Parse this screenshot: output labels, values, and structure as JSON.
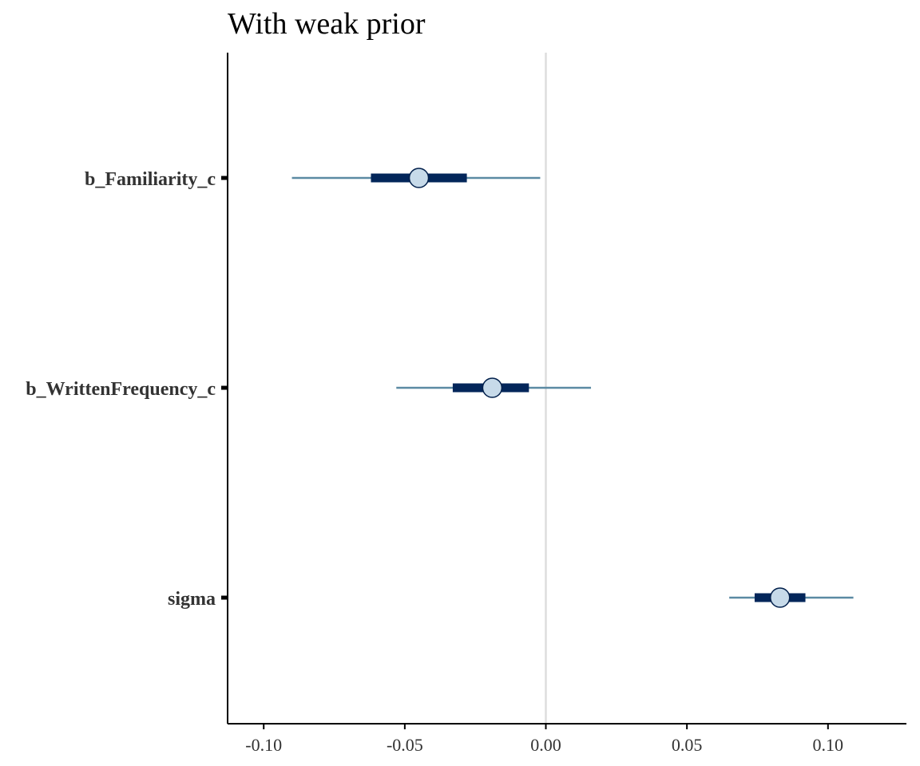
{
  "chart_data": {
    "type": "interval",
    "title": "With weak prior",
    "xlabel": "",
    "ylabel": "",
    "xlim": [
      -0.1128,
      0.1278
    ],
    "xticks": [
      -0.1,
      -0.05,
      0.0,
      0.05,
      0.1
    ],
    "xtick_labels": [
      "-0.10",
      "-0.05",
      "0.00",
      "0.05",
      "0.10"
    ],
    "reference_line_x": 0.0,
    "grid": false,
    "legend": "none",
    "parameters": [
      {
        "name": "b_Familiarity_c",
        "median": -0.045,
        "inner": [
          -0.062,
          -0.028
        ],
        "outer": [
          -0.09,
          -0.002
        ]
      },
      {
        "name": "b_WrittenFrequency_c",
        "median": -0.019,
        "inner": [
          -0.033,
          -0.006
        ],
        "outer": [
          -0.053,
          0.016
        ]
      },
      {
        "name": "sigma",
        "median": 0.083,
        "inner": [
          0.074,
          0.092
        ],
        "outer": [
          0.065,
          0.109
        ]
      }
    ],
    "colors": {
      "outer_line": "#5b8aa3",
      "inner_line": "#03265a",
      "point_fill": "#c7dae9",
      "point_stroke": "#011f4b",
      "reference_line": "#dddddd",
      "axis": "#000000",
      "label": "#333333"
    }
  }
}
